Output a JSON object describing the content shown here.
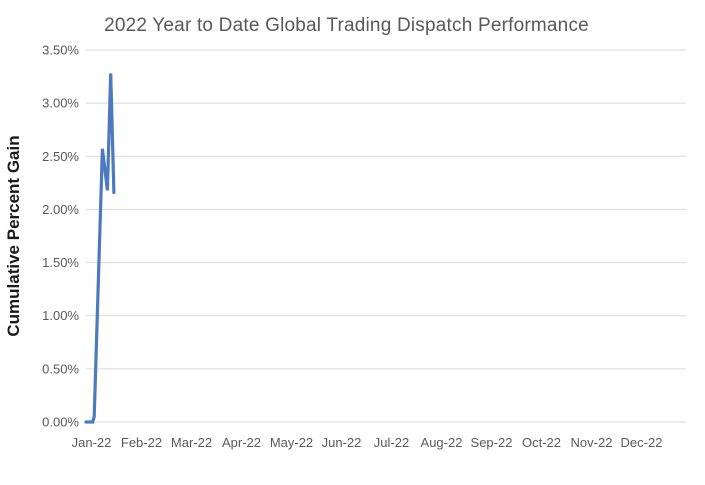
{
  "chart": {
    "title": "2022 Year to Date Global Trading Dispatch Performance",
    "y_axis_title": "Cumulative Percent Gain",
    "colors": {
      "line": "#4d79c0",
      "gridline": "#d9d9d9",
      "title_text": "#595959",
      "tick_text": "#595959",
      "axis_title_text": "#1a1a1a",
      "background": "#ffffff"
    }
  },
  "chart_data": {
    "type": "line",
    "title": "2022 Year to Date Global Trading Dispatch Performance",
    "xlabel": "",
    "ylabel": "Cumulative Percent Gain",
    "x_tick_labels": [
      "Jan-22",
      "Feb-22",
      "Mar-22",
      "Apr-22",
      "May-22",
      "Jun-22",
      "Jul-22",
      "Aug-22",
      "Sep-22",
      "Oct-22",
      "Nov-22",
      "Dec-22"
    ],
    "y_tick_labels": [
      "0.00%",
      "0.50%",
      "1.00%",
      "1.50%",
      "2.00%",
      "2.50%",
      "3.00%",
      "3.50%"
    ],
    "y_ticks": [
      0,
      0.5,
      1.0,
      1.5,
      2.0,
      2.5,
      3.0,
      3.5
    ],
    "ylim": [
      0,
      3.5
    ],
    "xlim_dates": [
      "2022-01-01",
      "2022-12-31"
    ],
    "grid": "horizontal",
    "legend": "none",
    "series": [
      {
        "name": "Cumulative Percent Gain",
        "unit": "percent",
        "points": [
          {
            "date": "2022-01-01",
            "value": 0.0
          },
          {
            "date": "2022-01-05",
            "value": 0.0
          },
          {
            "date": "2022-01-06",
            "value": 0.05
          },
          {
            "date": "2022-01-11",
            "value": 2.57
          },
          {
            "date": "2022-01-14",
            "value": 2.18
          },
          {
            "date": "2022-01-16",
            "value": 3.28
          },
          {
            "date": "2022-01-18",
            "value": 2.16
          }
        ]
      }
    ]
  }
}
